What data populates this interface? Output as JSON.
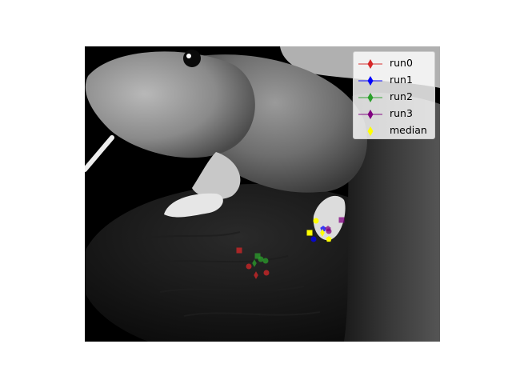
{
  "chart_data": {
    "type": "scatter",
    "title": "",
    "xlabel": "",
    "ylabel": "",
    "background": "grayscale photograph of a mouse on a textured dark surface",
    "legend_position": "top-right",
    "xlim": [
      0,
      444
    ],
    "ylim": [
      369,
      0
    ],
    "series": [
      {
        "name": "run0",
        "color": "#d62728",
        "marker_style": "line-diamond",
        "points": [
          {
            "x": 193,
            "y": 255,
            "marker": "square"
          },
          {
            "x": 205,
            "y": 275,
            "marker": "circle"
          },
          {
            "x": 214,
            "y": 286,
            "marker": "diamond"
          },
          {
            "x": 227,
            "y": 283,
            "marker": "circle"
          }
        ]
      },
      {
        "name": "run1",
        "color": "#0000ff",
        "marker_style": "line-diamond",
        "points": [
          {
            "x": 286,
            "y": 241,
            "marker": "circle"
          },
          {
            "x": 298,
            "y": 228,
            "marker": "pentagon"
          }
        ]
      },
      {
        "name": "run2",
        "color": "#2ca02c",
        "marker_style": "line-diamond",
        "points": [
          {
            "x": 216,
            "y": 262,
            "marker": "square"
          },
          {
            "x": 212,
            "y": 271,
            "marker": "diamond"
          },
          {
            "x": 220,
            "y": 266,
            "marker": "circle"
          },
          {
            "x": 226,
            "y": 268,
            "marker": "circle"
          }
        ]
      },
      {
        "name": "run3",
        "color": "#800080",
        "marker_style": "line-diamond",
        "points": [
          {
            "x": 321,
            "y": 217,
            "marker": "square"
          },
          {
            "x": 304,
            "y": 228,
            "marker": "pentagon"
          },
          {
            "x": 305,
            "y": 231,
            "marker": "circle"
          }
        ]
      },
      {
        "name": "median",
        "color": "#ffff00",
        "marker_style": "diamond",
        "points": [
          {
            "x": 281,
            "y": 233,
            "marker": "square"
          },
          {
            "x": 289,
            "y": 218,
            "marker": "circle"
          },
          {
            "x": 297,
            "y": 233,
            "marker": "diamond"
          },
          {
            "x": 305,
            "y": 241,
            "marker": "pentagon"
          }
        ]
      }
    ]
  }
}
